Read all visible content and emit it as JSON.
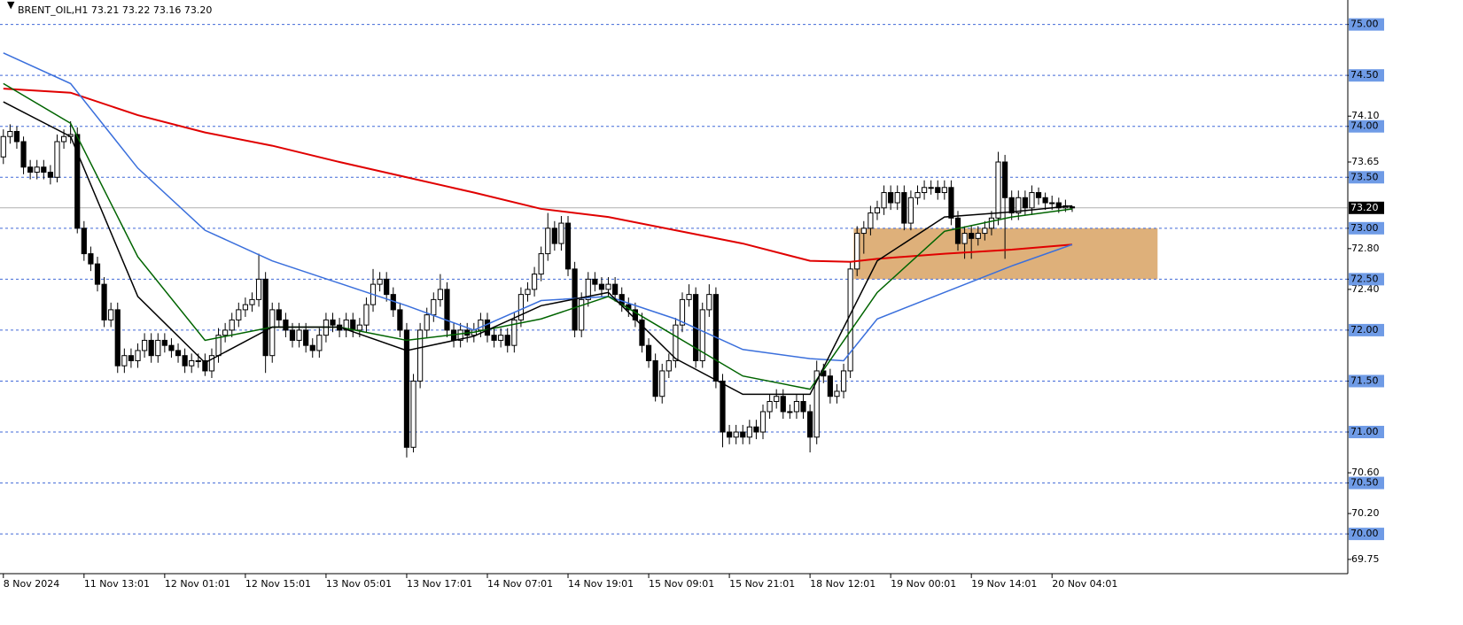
{
  "chart_data": {
    "type": "candlestick",
    "title": "BRENT_OIL,H1  73.21 73.22 73.16 73.20",
    "xlim": [
      -0.5,
      200
    ],
    "ylim": [
      69.61,
      75.24
    ],
    "xticks": [
      {
        "value": 0,
        "label": "8 Nov 2024"
      },
      {
        "value": 12,
        "label": "11 Nov 13:01"
      },
      {
        "value": 24,
        "label": "12 Nov 01:01"
      },
      {
        "value": 36,
        "label": "12 Nov 15:01"
      },
      {
        "value": 48,
        "label": "13 Nov 05:01"
      },
      {
        "value": 60,
        "label": "13 Nov 17:01"
      },
      {
        "value": 72,
        "label": "14 Nov 07:01"
      },
      {
        "value": 84,
        "label": "14 Nov 19:01"
      },
      {
        "value": 96,
        "label": "15 Nov 09:01"
      },
      {
        "value": 108,
        "label": "15 Nov 21:01"
      },
      {
        "value": 120,
        "label": "18 Nov 12:01"
      },
      {
        "value": 132,
        "label": "19 Nov 00:01"
      },
      {
        "value": 144,
        "label": "19 Nov 14:01"
      },
      {
        "value": 156,
        "label": "20 Nov 04:01"
      }
    ],
    "yticks": [
      {
        "value": 74.1,
        "label": "74.10"
      },
      {
        "value": 73.65,
        "label": "73.65"
      },
      {
        "value": 72.8,
        "label": "72.80"
      },
      {
        "value": 72.4,
        "label": "72.40"
      },
      {
        "value": 70.6,
        "label": "70.60"
      },
      {
        "value": 70.2,
        "label": "70.20"
      },
      {
        "value": 69.75,
        "label": "69.75"
      }
    ],
    "levels": [
      {
        "value": 75,
        "label": "75.00"
      },
      {
        "value": 74.5,
        "label": "74.50"
      },
      {
        "value": 74,
        "label": "74.00"
      },
      {
        "value": 73.5,
        "label": "73.50"
      },
      {
        "value": 73,
        "label": "73.00"
      },
      {
        "value": 72.5,
        "label": "72.50"
      },
      {
        "value": 72,
        "label": "72.00"
      },
      {
        "value": 71.5,
        "label": "71.50"
      },
      {
        "value": 71,
        "label": "71.00"
      },
      {
        "value": 70.5,
        "label": "70.50"
      },
      {
        "value": 70,
        "label": "70.00"
      }
    ],
    "level_color": "#4169d8",
    "current_price": {
      "value": 73.2,
      "label": "73.20"
    },
    "zone": {
      "x": [
        126.5,
        171.7
      ],
      "y": [
        72.5,
        73.0
      ],
      "color": "#deb07a"
    },
    "ohlc": [
      [
        73.7,
        73.97,
        73.63,
        73.9
      ],
      [
        73.9,
        74.02,
        73.83,
        73.95
      ],
      [
        73.95,
        74.0,
        73.78,
        73.85
      ],
      [
        73.85,
        73.9,
        73.53,
        73.6
      ],
      [
        73.6,
        73.67,
        73.48,
        73.55
      ],
      [
        73.55,
        73.67,
        73.48,
        73.6
      ],
      [
        73.6,
        73.67,
        73.48,
        73.55
      ],
      [
        73.55,
        73.62,
        73.43,
        73.5
      ],
      [
        73.5,
        73.92,
        73.45,
        73.85
      ],
      [
        73.85,
        73.97,
        73.78,
        73.9
      ],
      [
        73.9,
        74.05,
        73.83,
        73.92
      ],
      [
        73.92,
        73.99,
        72.95,
        73.0
      ],
      [
        73.0,
        73.07,
        72.68,
        72.75
      ],
      [
        72.75,
        72.82,
        72.58,
        72.65
      ],
      [
        72.65,
        72.72,
        72.38,
        72.45
      ],
      [
        72.45,
        72.52,
        72.03,
        72.1
      ],
      [
        72.1,
        72.27,
        72.03,
        72.2
      ],
      [
        72.2,
        72.27,
        71.58,
        71.65
      ],
      [
        71.65,
        71.82,
        71.58,
        71.75
      ],
      [
        71.75,
        71.82,
        71.63,
        71.7
      ],
      [
        71.7,
        71.87,
        71.63,
        71.8
      ],
      [
        71.8,
        71.97,
        71.73,
        71.9
      ],
      [
        71.9,
        71.97,
        71.68,
        71.75
      ],
      [
        71.75,
        71.97,
        71.68,
        71.9
      ],
      [
        71.9,
        71.97,
        71.78,
        71.85
      ],
      [
        71.85,
        71.92,
        71.73,
        71.8
      ],
      [
        71.8,
        71.87,
        71.68,
        71.75
      ],
      [
        71.75,
        71.82,
        71.58,
        71.65
      ],
      [
        71.65,
        71.77,
        71.58,
        71.7
      ],
      [
        71.7,
        71.77,
        71.63,
        71.7
      ],
      [
        71.7,
        71.77,
        71.55,
        71.6
      ],
      [
        71.6,
        71.82,
        71.53,
        71.75
      ],
      [
        71.75,
        72.02,
        71.68,
        71.95
      ],
      [
        71.95,
        72.07,
        71.88,
        72.0
      ],
      [
        72.0,
        72.17,
        71.93,
        72.1
      ],
      [
        72.1,
        72.27,
        72.03,
        72.2
      ],
      [
        72.2,
        72.32,
        72.13,
        72.25
      ],
      [
        72.25,
        72.37,
        72.18,
        72.3
      ],
      [
        72.3,
        72.75,
        72.23,
        72.5
      ],
      [
        72.5,
        72.57,
        71.58,
        71.75
      ],
      [
        71.75,
        72.27,
        71.68,
        72.2
      ],
      [
        72.2,
        72.27,
        72.03,
        72.1
      ],
      [
        72.1,
        72.17,
        71.93,
        72.0
      ],
      [
        72.0,
        72.07,
        71.83,
        71.9
      ],
      [
        71.9,
        72.07,
        71.83,
        72.0
      ],
      [
        72.0,
        72.07,
        71.78,
        71.85
      ],
      [
        71.85,
        71.92,
        71.73,
        71.8
      ],
      [
        71.8,
        72.02,
        71.73,
        71.95
      ],
      [
        71.95,
        72.17,
        71.88,
        72.1
      ],
      [
        72.1,
        72.17,
        71.98,
        72.05
      ],
      [
        72.05,
        72.12,
        71.93,
        72.0
      ],
      [
        72.0,
        72.17,
        71.93,
        72.1
      ],
      [
        72.1,
        72.17,
        71.93,
        72.0
      ],
      [
        72.0,
        72.12,
        71.93,
        72.05
      ],
      [
        72.05,
        72.32,
        71.98,
        72.25
      ],
      [
        72.25,
        72.6,
        72.18,
        72.45
      ],
      [
        72.45,
        72.57,
        72.38,
        72.5
      ],
      [
        72.5,
        72.57,
        72.28,
        72.35
      ],
      [
        72.35,
        72.42,
        72.13,
        72.2
      ],
      [
        72.2,
        72.27,
        71.93,
        72.0
      ],
      [
        72.0,
        72.07,
        70.75,
        70.85
      ],
      [
        70.85,
        71.57,
        70.8,
        71.5
      ],
      [
        71.5,
        72.07,
        71.43,
        72.0
      ],
      [
        72.0,
        72.22,
        71.93,
        72.15
      ],
      [
        72.15,
        72.37,
        72.08,
        72.3
      ],
      [
        72.3,
        72.55,
        72.23,
        72.4
      ],
      [
        72.4,
        72.47,
        71.93,
        72.0
      ],
      [
        72.0,
        72.07,
        71.83,
        71.9
      ],
      [
        71.9,
        72.07,
        71.83,
        72.0
      ],
      [
        72.0,
        72.07,
        71.88,
        71.95
      ],
      [
        71.95,
        72.07,
        71.88,
        72.0
      ],
      [
        72.0,
        72.17,
        71.93,
        72.1
      ],
      [
        72.1,
        72.17,
        71.88,
        71.95
      ],
      [
        71.95,
        72.02,
        71.83,
        71.9
      ],
      [
        71.9,
        72.02,
        71.83,
        71.95
      ],
      [
        71.95,
        72.02,
        71.78,
        71.85
      ],
      [
        71.85,
        72.17,
        71.78,
        72.1
      ],
      [
        72.1,
        72.42,
        72.03,
        72.35
      ],
      [
        72.35,
        72.47,
        72.28,
        72.4
      ],
      [
        72.4,
        72.62,
        72.33,
        72.55
      ],
      [
        72.55,
        72.82,
        72.48,
        72.75
      ],
      [
        72.75,
        73.15,
        72.68,
        73.0
      ],
      [
        73.0,
        73.07,
        72.78,
        72.85
      ],
      [
        72.85,
        73.12,
        72.78,
        73.05
      ],
      [
        73.05,
        73.12,
        72.53,
        72.6
      ],
      [
        72.6,
        72.67,
        71.93,
        72.0
      ],
      [
        72.0,
        72.37,
        71.93,
        72.3
      ],
      [
        72.3,
        72.57,
        72.23,
        72.5
      ],
      [
        72.5,
        72.57,
        72.38,
        72.45
      ],
      [
        72.45,
        72.52,
        72.33,
        72.4
      ],
      [
        72.4,
        72.52,
        72.33,
        72.45
      ],
      [
        72.45,
        72.52,
        72.28,
        72.35
      ],
      [
        72.35,
        72.42,
        72.18,
        72.25
      ],
      [
        72.25,
        72.32,
        72.13,
        72.2
      ],
      [
        72.2,
        72.27,
        72.03,
        72.1
      ],
      [
        72.1,
        72.17,
        71.78,
        71.85
      ],
      [
        71.85,
        71.92,
        71.63,
        71.7
      ],
      [
        71.7,
        71.77,
        71.3,
        71.35
      ],
      [
        71.35,
        71.67,
        71.28,
        71.6
      ],
      [
        71.6,
        71.77,
        71.53,
        71.7
      ],
      [
        71.7,
        72.12,
        71.63,
        72.05
      ],
      [
        72.05,
        72.37,
        71.98,
        72.3
      ],
      [
        72.3,
        72.45,
        72.23,
        72.35
      ],
      [
        72.35,
        72.42,
        71.63,
        71.7
      ],
      [
        71.7,
        72.27,
        71.63,
        72.2
      ],
      [
        72.2,
        72.45,
        72.13,
        72.35
      ],
      [
        72.35,
        72.42,
        71.43,
        71.5
      ],
      [
        71.5,
        71.57,
        70.85,
        71.0
      ],
      [
        71.0,
        71.07,
        70.88,
        70.95
      ],
      [
        70.95,
        71.07,
        70.88,
        71.0
      ],
      [
        71.0,
        71.07,
        70.88,
        70.95
      ],
      [
        70.95,
        71.12,
        70.88,
        71.05
      ],
      [
        71.05,
        71.12,
        70.93,
        71.0
      ],
      [
        71.0,
        71.27,
        70.93,
        71.2
      ],
      [
        71.2,
        71.37,
        71.13,
        71.3
      ],
      [
        71.3,
        71.42,
        71.23,
        71.35
      ],
      [
        71.35,
        71.42,
        71.13,
        71.2
      ],
      [
        71.2,
        71.27,
        71.13,
        71.2
      ],
      [
        71.2,
        71.37,
        71.13,
        71.3
      ],
      [
        71.3,
        71.37,
        71.13,
        71.2
      ],
      [
        71.2,
        71.27,
        70.8,
        70.95
      ],
      [
        70.95,
        71.7,
        70.88,
        71.6
      ],
      [
        71.6,
        71.67,
        71.48,
        71.55
      ],
      [
        71.55,
        71.62,
        71.28,
        71.35
      ],
      [
        71.35,
        71.47,
        71.28,
        71.4
      ],
      [
        71.4,
        71.67,
        71.33,
        71.6
      ],
      [
        71.6,
        72.67,
        71.53,
        72.6
      ],
      [
        72.6,
        73.02,
        72.53,
        72.95
      ],
      [
        72.95,
        73.07,
        72.75,
        73.0
      ],
      [
        73.0,
        73.22,
        72.93,
        73.15
      ],
      [
        73.15,
        73.27,
        73.08,
        73.2
      ],
      [
        73.2,
        73.42,
        73.13,
        73.35
      ],
      [
        73.35,
        73.42,
        73.18,
        73.25
      ],
      [
        73.25,
        73.42,
        73.18,
        73.35
      ],
      [
        73.35,
        73.42,
        72.98,
        73.05
      ],
      [
        73.05,
        73.37,
        72.98,
        73.3
      ],
      [
        73.3,
        73.42,
        73.23,
        73.35
      ],
      [
        73.35,
        73.47,
        73.28,
        73.4
      ],
      [
        73.4,
        73.47,
        73.33,
        73.4
      ],
      [
        73.4,
        73.47,
        73.28,
        73.35
      ],
      [
        73.35,
        73.47,
        73.28,
        73.4
      ],
      [
        73.4,
        73.47,
        73.03,
        73.1
      ],
      [
        73.1,
        73.17,
        72.78,
        72.85
      ],
      [
        72.85,
        73.02,
        72.7,
        72.95
      ],
      [
        72.95,
        73.02,
        72.7,
        72.9
      ],
      [
        72.9,
        73.02,
        72.83,
        72.95
      ],
      [
        72.95,
        73.07,
        72.88,
        73.0
      ],
      [
        73.0,
        73.17,
        72.93,
        73.1
      ],
      [
        73.1,
        73.75,
        73.03,
        73.65
      ],
      [
        73.65,
        73.72,
        72.7,
        73.3
      ],
      [
        73.3,
        73.37,
        73.08,
        73.15
      ],
      [
        73.15,
        73.37,
        73.08,
        73.3
      ],
      [
        73.3,
        73.37,
        73.13,
        73.2
      ],
      [
        73.2,
        73.42,
        73.13,
        73.35
      ],
      [
        73.35,
        73.4,
        73.23,
        73.3
      ],
      [
        73.3,
        73.35,
        73.18,
        73.25
      ],
      [
        73.25,
        73.32,
        73.18,
        73.25
      ],
      [
        73.25,
        73.3,
        73.15,
        73.2
      ],
      [
        73.2,
        73.28,
        73.16,
        73.22
      ],
      [
        73.21,
        73.22,
        73.16,
        73.2
      ]
    ],
    "lines": [
      {
        "color": "#e00000",
        "width": 2,
        "x": [
          0,
          10,
          20,
          30,
          40,
          50,
          60,
          70,
          80,
          90,
          100,
          110,
          120,
          126,
          130,
          140,
          150,
          159
        ],
        "values": [
          74.37,
          74.33,
          74.11,
          73.94,
          73.81,
          73.65,
          73.5,
          73.35,
          73.19,
          73.11,
          72.98,
          72.85,
          72.68,
          72.67,
          72.7,
          72.75,
          72.79,
          72.84
        ]
      },
      {
        "color": "#3a6fdc",
        "width": 1.5,
        "x": [
          0,
          10,
          20,
          30,
          40,
          50,
          60,
          70,
          80,
          90,
          100,
          110,
          120,
          125,
          130,
          140,
          150,
          159
        ],
        "values": [
          74.72,
          74.42,
          73.59,
          72.98,
          72.68,
          72.46,
          72.24,
          72.0,
          72.29,
          72.33,
          72.11,
          71.81,
          71.72,
          71.7,
          72.11,
          72.37,
          72.63,
          72.84
        ]
      },
      {
        "color": "#006400",
        "width": 1.5,
        "x": [
          0,
          10,
          20,
          30,
          40,
          50,
          60,
          70,
          80,
          90,
          100,
          110,
          120,
          130,
          140,
          150,
          159
        ],
        "values": [
          74.42,
          74.03,
          72.72,
          71.9,
          72.03,
          72.03,
          71.9,
          71.98,
          72.11,
          72.33,
          71.94,
          71.55,
          71.42,
          72.37,
          72.97,
          73.11,
          73.19
        ]
      },
      {
        "color": "#000000",
        "width": 1.5,
        "x": [
          0,
          10,
          20,
          30,
          40,
          50,
          60,
          70,
          80,
          90,
          100,
          110,
          120,
          130,
          140,
          150,
          159
        ],
        "values": [
          74.24,
          73.9,
          72.33,
          71.68,
          72.03,
          72.03,
          71.8,
          71.94,
          72.24,
          72.37,
          71.72,
          71.37,
          71.37,
          72.68,
          73.11,
          73.16,
          73.22
        ]
      }
    ]
  }
}
